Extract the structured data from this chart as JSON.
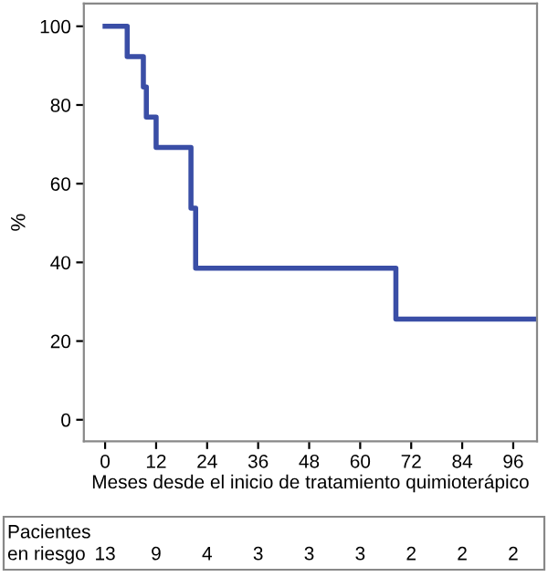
{
  "chart_data": {
    "type": "step",
    "xlabel": "Meses desde el inicio de tratamiento quimioterápico",
    "ylabel": "%",
    "series": [
      {
        "color": "#3a4ea6",
        "x": [
          0,
          5.2,
          9,
          9.7,
          12,
          20.2,
          21.3,
          68.4,
          101.5
        ],
        "values": [
          100,
          92.3,
          84.6,
          76.9,
          69.2,
          53.8,
          38.5,
          25.6,
          25.6
        ]
      }
    ],
    "xlim": [
      -5,
      101.6
    ],
    "xticks": [
      0,
      12,
      24,
      36,
      48,
      60,
      72,
      84,
      96
    ],
    "ylim": [
      -5.5,
      105.8
    ],
    "yticks": [
      0,
      20,
      40,
      60,
      80,
      100
    ],
    "grid": false,
    "legend": false,
    "annotations": [
      "Pacientes\nen riesgo",
      "13",
      "9",
      "4",
      "3",
      "3",
      "3",
      "2",
      "2",
      "2"
    ]
  }
}
